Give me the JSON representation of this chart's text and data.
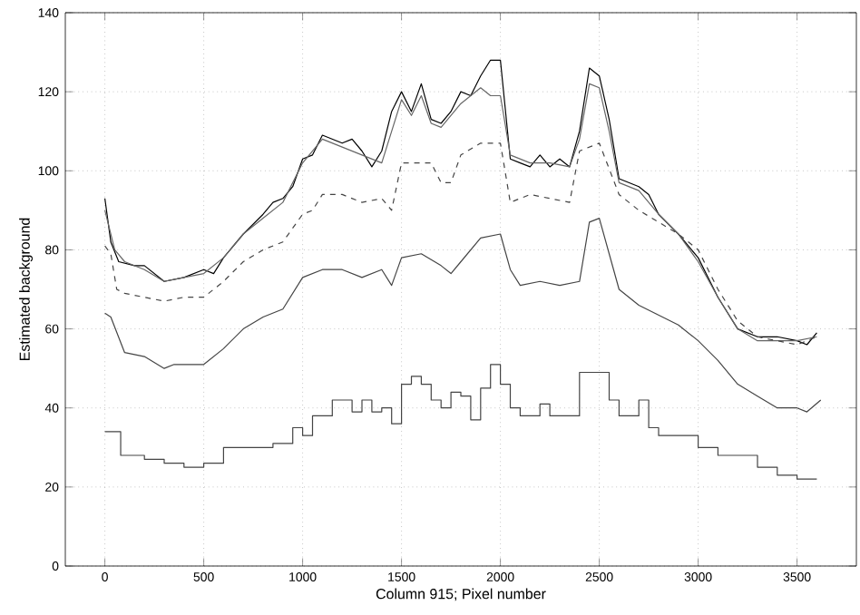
{
  "chart_data": {
    "type": "line",
    "xlabel": "Column 915; Pixel number",
    "ylabel": "Estimated background",
    "xlim": [
      -200,
      3800
    ],
    "ylim": [
      0,
      140
    ],
    "xticks": [
      0,
      500,
      1000,
      1500,
      2000,
      2500,
      3000,
      3500
    ],
    "yticks": [
      0,
      20,
      40,
      60,
      80,
      100,
      120,
      140
    ],
    "grid": true,
    "marker": "none",
    "series": [
      {
        "color": "#000000",
        "line_style": "solid",
        "x": [
          0,
          30,
          70,
          150,
          200,
          300,
          400,
          500,
          550,
          600,
          700,
          800,
          850,
          900,
          950,
          1000,
          1050,
          1100,
          1150,
          1200,
          1250,
          1300,
          1350,
          1400,
          1450,
          1500,
          1550,
          1600,
          1650,
          1700,
          1750,
          1800,
          1850,
          1900,
          1950,
          2000,
          2050,
          2100,
          2150,
          2200,
          2250,
          2300,
          2350,
          2400,
          2450,
          2500,
          2550,
          2600,
          2700,
          2750,
          2800,
          2900,
          3000,
          3100,
          3200,
          3300,
          3400,
          3500,
          3550,
          3600
        ],
        "values": [
          93,
          82,
          77,
          76,
          76,
          72,
          73,
          75,
          74,
          78,
          84,
          89,
          92,
          93,
          96,
          103,
          104,
          109,
          108,
          107,
          108,
          105,
          101,
          105,
          115,
          120,
          115,
          122,
          113,
          112,
          115,
          120,
          119,
          124,
          128,
          128,
          103,
          102,
          101,
          104,
          101,
          103,
          101,
          110,
          126,
          124,
          113,
          98,
          96,
          94,
          89,
          84,
          78,
          68,
          60,
          58,
          58,
          57,
          56,
          59
        ]
      },
      {
        "color": "#666666",
        "line_style": "solid",
        "x": [
          0,
          50,
          100,
          200,
          300,
          400,
          500,
          600,
          700,
          800,
          900,
          1000,
          1100,
          1200,
          1300,
          1400,
          1450,
          1500,
          1550,
          1600,
          1650,
          1700,
          1800,
          1900,
          1950,
          2000,
          2050,
          2150,
          2250,
          2350,
          2400,
          2450,
          2500,
          2550,
          2600,
          2700,
          2800,
          2900,
          3000,
          3100,
          3200,
          3300,
          3400,
          3500,
          3600
        ],
        "values": [
          90,
          80,
          77,
          75,
          72,
          73,
          74,
          78,
          84,
          88,
          92,
          102,
          108,
          106,
          104,
          102,
          110,
          118,
          114,
          119,
          112,
          111,
          117,
          121,
          119,
          119,
          104,
          102,
          102,
          101,
          108,
          122,
          121,
          110,
          97,
          95,
          89,
          84,
          77,
          68,
          60,
          57,
          57,
          57,
          58
        ]
      },
      {
        "color": "#444444",
        "line_style": "dashed",
        "x": [
          0,
          30,
          60,
          100,
          200,
          300,
          400,
          500,
          600,
          700,
          800,
          900,
          1000,
          1050,
          1100,
          1200,
          1300,
          1400,
          1450,
          1500,
          1600,
          1650,
          1700,
          1750,
          1800,
          1900,
          2000,
          2050,
          2150,
          2250,
          2350,
          2400,
          2500,
          2600,
          2700,
          2800,
          2900,
          3000,
          3100,
          3200,
          3300,
          3400,
          3500,
          3600
        ],
        "values": [
          81,
          79,
          70,
          69,
          68,
          67,
          68,
          68,
          72,
          77,
          80,
          82,
          89,
          90,
          94,
          94,
          92,
          93,
          90,
          102,
          102,
          102,
          97,
          97,
          104,
          107,
          107,
          92,
          94,
          93,
          92,
          105,
          107,
          94,
          90,
          87,
          84,
          80,
          70,
          62,
          58,
          57,
          56,
          58
        ]
      },
      {
        "color": "#444444",
        "line_style": "solid",
        "x": [
          0,
          30,
          100,
          200,
          300,
          350,
          500,
          600,
          700,
          800,
          900,
          1000,
          1100,
          1200,
          1300,
          1400,
          1450,
          1500,
          1600,
          1700,
          1750,
          1800,
          1900,
          2000,
          2050,
          2100,
          2200,
          2300,
          2400,
          2450,
          2500,
          2600,
          2700,
          2900,
          3000,
          3100,
          3200,
          3300,
          3400,
          3500,
          3550,
          3620
        ],
        "values": [
          64,
          63,
          54,
          53,
          50,
          51,
          51,
          55,
          60,
          63,
          65,
          73,
          75,
          75,
          73,
          75,
          71,
          78,
          79,
          76,
          74,
          77,
          83,
          84,
          75,
          71,
          72,
          71,
          72,
          87,
          88,
          70,
          66,
          61,
          57,
          52,
          46,
          43,
          40,
          40,
          39,
          42
        ]
      },
      {
        "type": "step",
        "color": "#444444",
        "line_style": "solid",
        "x": [
          0,
          50,
          80,
          200,
          300,
          350,
          400,
          500,
          600,
          800,
          850,
          950,
          1000,
          1050,
          1100,
          1150,
          1200,
          1250,
          1300,
          1350,
          1400,
          1450,
          1500,
          1550,
          1600,
          1650,
          1700,
          1750,
          1800,
          1850,
          1900,
          1950,
          2000,
          2050,
          2100,
          2200,
          2250,
          2350,
          2400,
          2500,
          2550,
          2600,
          2700,
          2750,
          2800,
          3000,
          3100,
          3200,
          3300,
          3400,
          3500,
          3600
        ],
        "values": [
          34,
          34,
          28,
          27,
          26,
          26,
          25,
          26,
          30,
          30,
          31,
          35,
          33,
          38,
          38,
          42,
          42,
          39,
          42,
          39,
          40,
          36,
          46,
          48,
          46,
          42,
          40,
          44,
          43,
          37,
          45,
          51,
          46,
          40,
          38,
          41,
          38,
          38,
          49,
          49,
          42,
          38,
          42,
          35,
          33,
          30,
          28,
          28,
          25,
          23,
          22,
          22
        ]
      }
    ]
  }
}
